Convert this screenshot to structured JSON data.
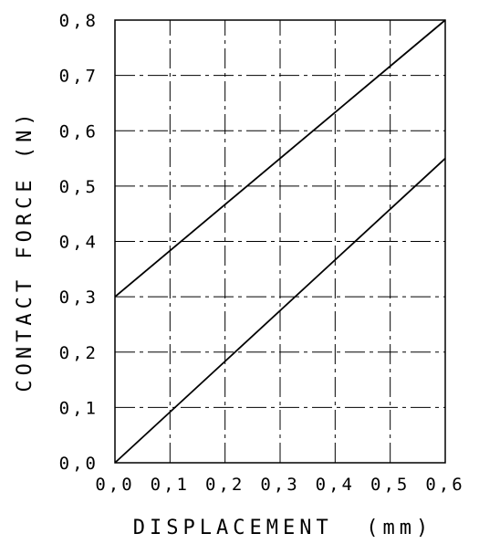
{
  "chart_data": {
    "type": "line",
    "xlabel": "DISPLACEMENT  (mm)",
    "ylabel": "CONTACT FORCE (N)",
    "xlim": [
      0,
      0.6
    ],
    "ylim": [
      0,
      0.8
    ],
    "x_ticks": [
      "0,0",
      "0,1",
      "0,2",
      "0,3",
      "0,4",
      "0,5",
      "0,6"
    ],
    "y_ticks": [
      "0,0",
      "0,1",
      "0,2",
      "0,3",
      "0,4",
      "0,5",
      "0,6",
      "0,7",
      "0,8"
    ],
    "grid": true,
    "legend": "none",
    "series": [
      {
        "x": [
          0,
          0.6
        ],
        "y": [
          0.3,
          0.8
        ]
      },
      {
        "x": [
          0,
          0.6
        ],
        "y": [
          0,
          0.55
        ]
      }
    ]
  }
}
